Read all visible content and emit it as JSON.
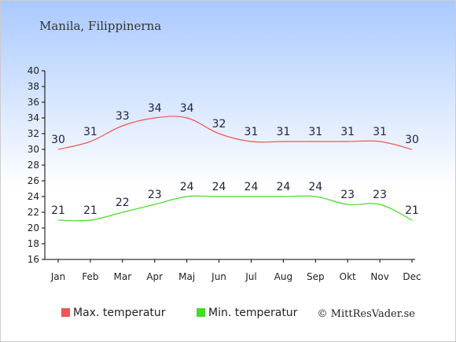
{
  "chart_data": {
    "type": "line",
    "title": "Manila, Filippinerna",
    "xlabel": "",
    "ylabel": "",
    "categories": [
      "Jan",
      "Feb",
      "Mar",
      "Apr",
      "Maj",
      "Jun",
      "Jul",
      "Aug",
      "Sep",
      "Okt",
      "Nov",
      "Dec"
    ],
    "ylim": [
      16,
      40
    ],
    "yticks": [
      16,
      18,
      20,
      22,
      24,
      26,
      28,
      30,
      32,
      34,
      36,
      38,
      40
    ],
    "grid": false,
    "legend_position": "bottom",
    "series": [
      {
        "name": "Max. temperatur",
        "color": "#ee5555",
        "values": [
          30,
          31,
          33,
          34,
          34,
          32,
          31,
          31,
          31,
          31,
          31,
          30
        ]
      },
      {
        "name": "Min. temperatur",
        "color": "#44dd22",
        "values": [
          21,
          21,
          22,
          23,
          24,
          24,
          24,
          24,
          24,
          23,
          23,
          21
        ]
      }
    ],
    "credit": "© MittResVader.se"
  }
}
